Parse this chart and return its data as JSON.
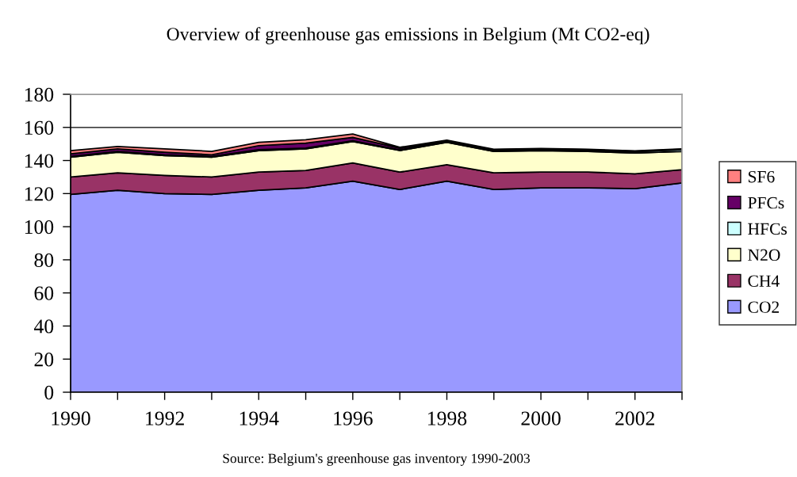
{
  "chart_data": {
    "type": "area",
    "stacked": true,
    "title": "Overview of greenhouse gas emissions in Belgium (Mt CO2-eq)",
    "annotations": [
      "Source: Belgium's greenhouse gas inventory 1990-2003"
    ],
    "x": [
      1990,
      1991,
      1992,
      1993,
      1994,
      1995,
      1996,
      1997,
      1998,
      1999,
      2000,
      2001,
      2002,
      2003
    ],
    "series": [
      {
        "name": "CO2",
        "color": "#9999ff",
        "values": [
          119.5,
          122,
          120,
          119.5,
          122,
          123.5,
          127.5,
          122.5,
          127.5,
          122.5,
          123.5,
          123.5,
          123,
          126.5
        ]
      },
      {
        "name": "CH4",
        "color": "#993366",
        "values": [
          10.5,
          10.5,
          11,
          10.5,
          11,
          10.5,
          11,
          10.5,
          10,
          10,
          9.5,
          9.5,
          9,
          8
        ]
      },
      {
        "name": "N2O",
        "color": "#ffffcc",
        "values": [
          12,
          12.5,
          12,
          12,
          13,
          13,
          13,
          13,
          13.5,
          13,
          13,
          12.5,
          12.5,
          11
        ]
      },
      {
        "name": "HFCs",
        "color": "#ccffff",
        "values": [
          0.5,
          0.5,
          0.5,
          0.5,
          0.5,
          0.5,
          0.5,
          0.5,
          0.5,
          0.5,
          0.5,
          0.8,
          0.8,
          1
        ]
      },
      {
        "name": "PFCs",
        "color": "#660066",
        "values": [
          1.5,
          1.5,
          1.5,
          1,
          2.5,
          3,
          2,
          1,
          0.5,
          0.5,
          0.5,
          0.3,
          0.3,
          0.3
        ]
      },
      {
        "name": "SF6",
        "color": "#ff8080",
        "values": [
          2,
          1.5,
          2,
          2,
          2,
          2,
          2,
          0.5,
          0.3,
          0.3,
          0.3,
          0.2,
          0.2,
          0.2
        ]
      }
    ],
    "xlim": [
      1990,
      2003
    ],
    "xticks": [
      1990,
      {
        "value": 1991,
        "label": null
      },
      1992,
      {
        "value": 1993,
        "label": null
      },
      1994,
      {
        "value": 1995,
        "label": null
      },
      1996,
      {
        "value": 1997,
        "label": null
      },
      1998,
      {
        "value": 1999,
        "label": null
      },
      2000,
      {
        "value": 2001,
        "label": null
      },
      2002,
      {
        "value": 2003,
        "label": null
      }
    ],
    "ylim": [
      0,
      180
    ],
    "yticks": [
      0,
      20,
      40,
      60,
      80,
      100,
      120,
      140,
      160,
      180
    ],
    "grid": "y",
    "legend": "right"
  }
}
